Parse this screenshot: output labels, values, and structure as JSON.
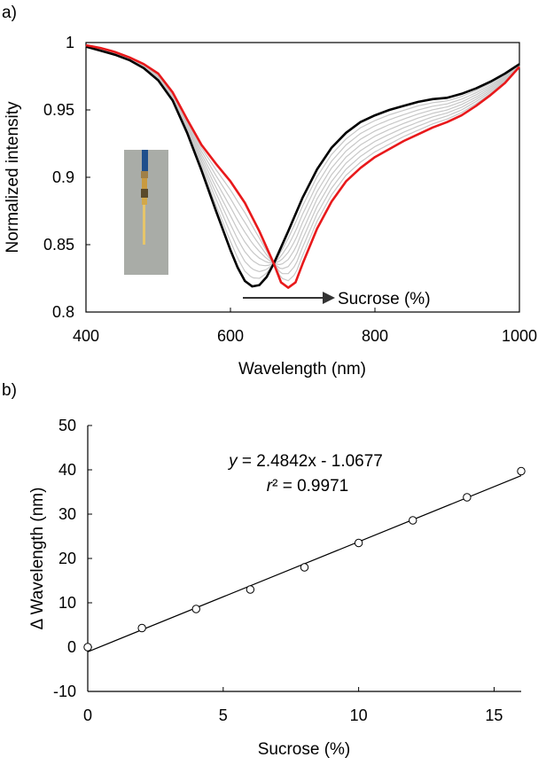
{
  "chart_data": [
    {
      "panel": "a)",
      "type": "line",
      "xlabel": "Wavelength (nm)",
      "ylabel": "Normalized intensity",
      "xlim": [
        400,
        1000
      ],
      "ylim": [
        0.8,
        1.0
      ],
      "xticks": [
        400,
        600,
        800,
        1000
      ],
      "yticks": [
        0.8,
        0.85,
        0.9,
        0.95,
        1.0
      ],
      "ytick_labels": [
        "0.8",
        "0.85",
        "0.9",
        "0.95",
        "1"
      ],
      "annotation": "Sucrose (%)",
      "grid": false,
      "intermediate_curves": 7,
      "series": [
        {
          "color": "#000000",
          "x": [
            400,
            420,
            440,
            460,
            480,
            500,
            520,
            540,
            560,
            580,
            600,
            610,
            620,
            630,
            640,
            650,
            660,
            680,
            700,
            720,
            740,
            760,
            780,
            800,
            820,
            840,
            860,
            880,
            900,
            920,
            940,
            960,
            980,
            1000
          ],
          "y": [
            0.997,
            0.994,
            0.991,
            0.987,
            0.981,
            0.972,
            0.957,
            0.933,
            0.905,
            0.875,
            0.846,
            0.833,
            0.823,
            0.819,
            0.82,
            0.826,
            0.836,
            0.86,
            0.885,
            0.906,
            0.922,
            0.933,
            0.941,
            0.946,
            0.95,
            0.953,
            0.956,
            0.958,
            0.959,
            0.962,
            0.966,
            0.971,
            0.977,
            0.984
          ]
        },
        {
          "color": "#e8191b",
          "x": [
            400,
            420,
            440,
            460,
            480,
            500,
            520,
            540,
            560,
            580,
            600,
            620,
            640,
            660,
            670,
            680,
            690,
            700,
            720,
            740,
            760,
            780,
            800,
            820,
            840,
            860,
            880,
            900,
            920,
            940,
            960,
            980,
            1000
          ],
          "y": [
            0.998,
            0.996,
            0.993,
            0.989,
            0.984,
            0.977,
            0.963,
            0.943,
            0.924,
            0.91,
            0.897,
            0.881,
            0.86,
            0.836,
            0.822,
            0.818,
            0.822,
            0.836,
            0.862,
            0.882,
            0.897,
            0.907,
            0.915,
            0.921,
            0.927,
            0.932,
            0.937,
            0.941,
            0.946,
            0.953,
            0.961,
            0.97,
            0.982
          ]
        }
      ]
    },
    {
      "panel": "b)",
      "type": "scatter",
      "xlabel": "Sucrose (%)",
      "ylabel": "Δ Wavelength (nm)",
      "xlim": [
        0,
        16
      ],
      "ylim": [
        -10,
        50
      ],
      "xticks": [
        0,
        5,
        10,
        15
      ],
      "yticks": [
        -10,
        0,
        10,
        20,
        30,
        40,
        50
      ],
      "grid": false,
      "series": [
        {
          "x": [
            0,
            2,
            4,
            6,
            8,
            10,
            12,
            14,
            16
          ],
          "y": [
            0,
            4.3,
            8.6,
            13,
            18,
            23.5,
            28.6,
            33.8,
            39.7
          ]
        }
      ],
      "fit": {
        "slope": 2.4842,
        "intercept": -1.0677
      },
      "equation_text": "y = 2.4842x - 1.0677",
      "r2_text": "r² = 0.9971"
    }
  ]
}
